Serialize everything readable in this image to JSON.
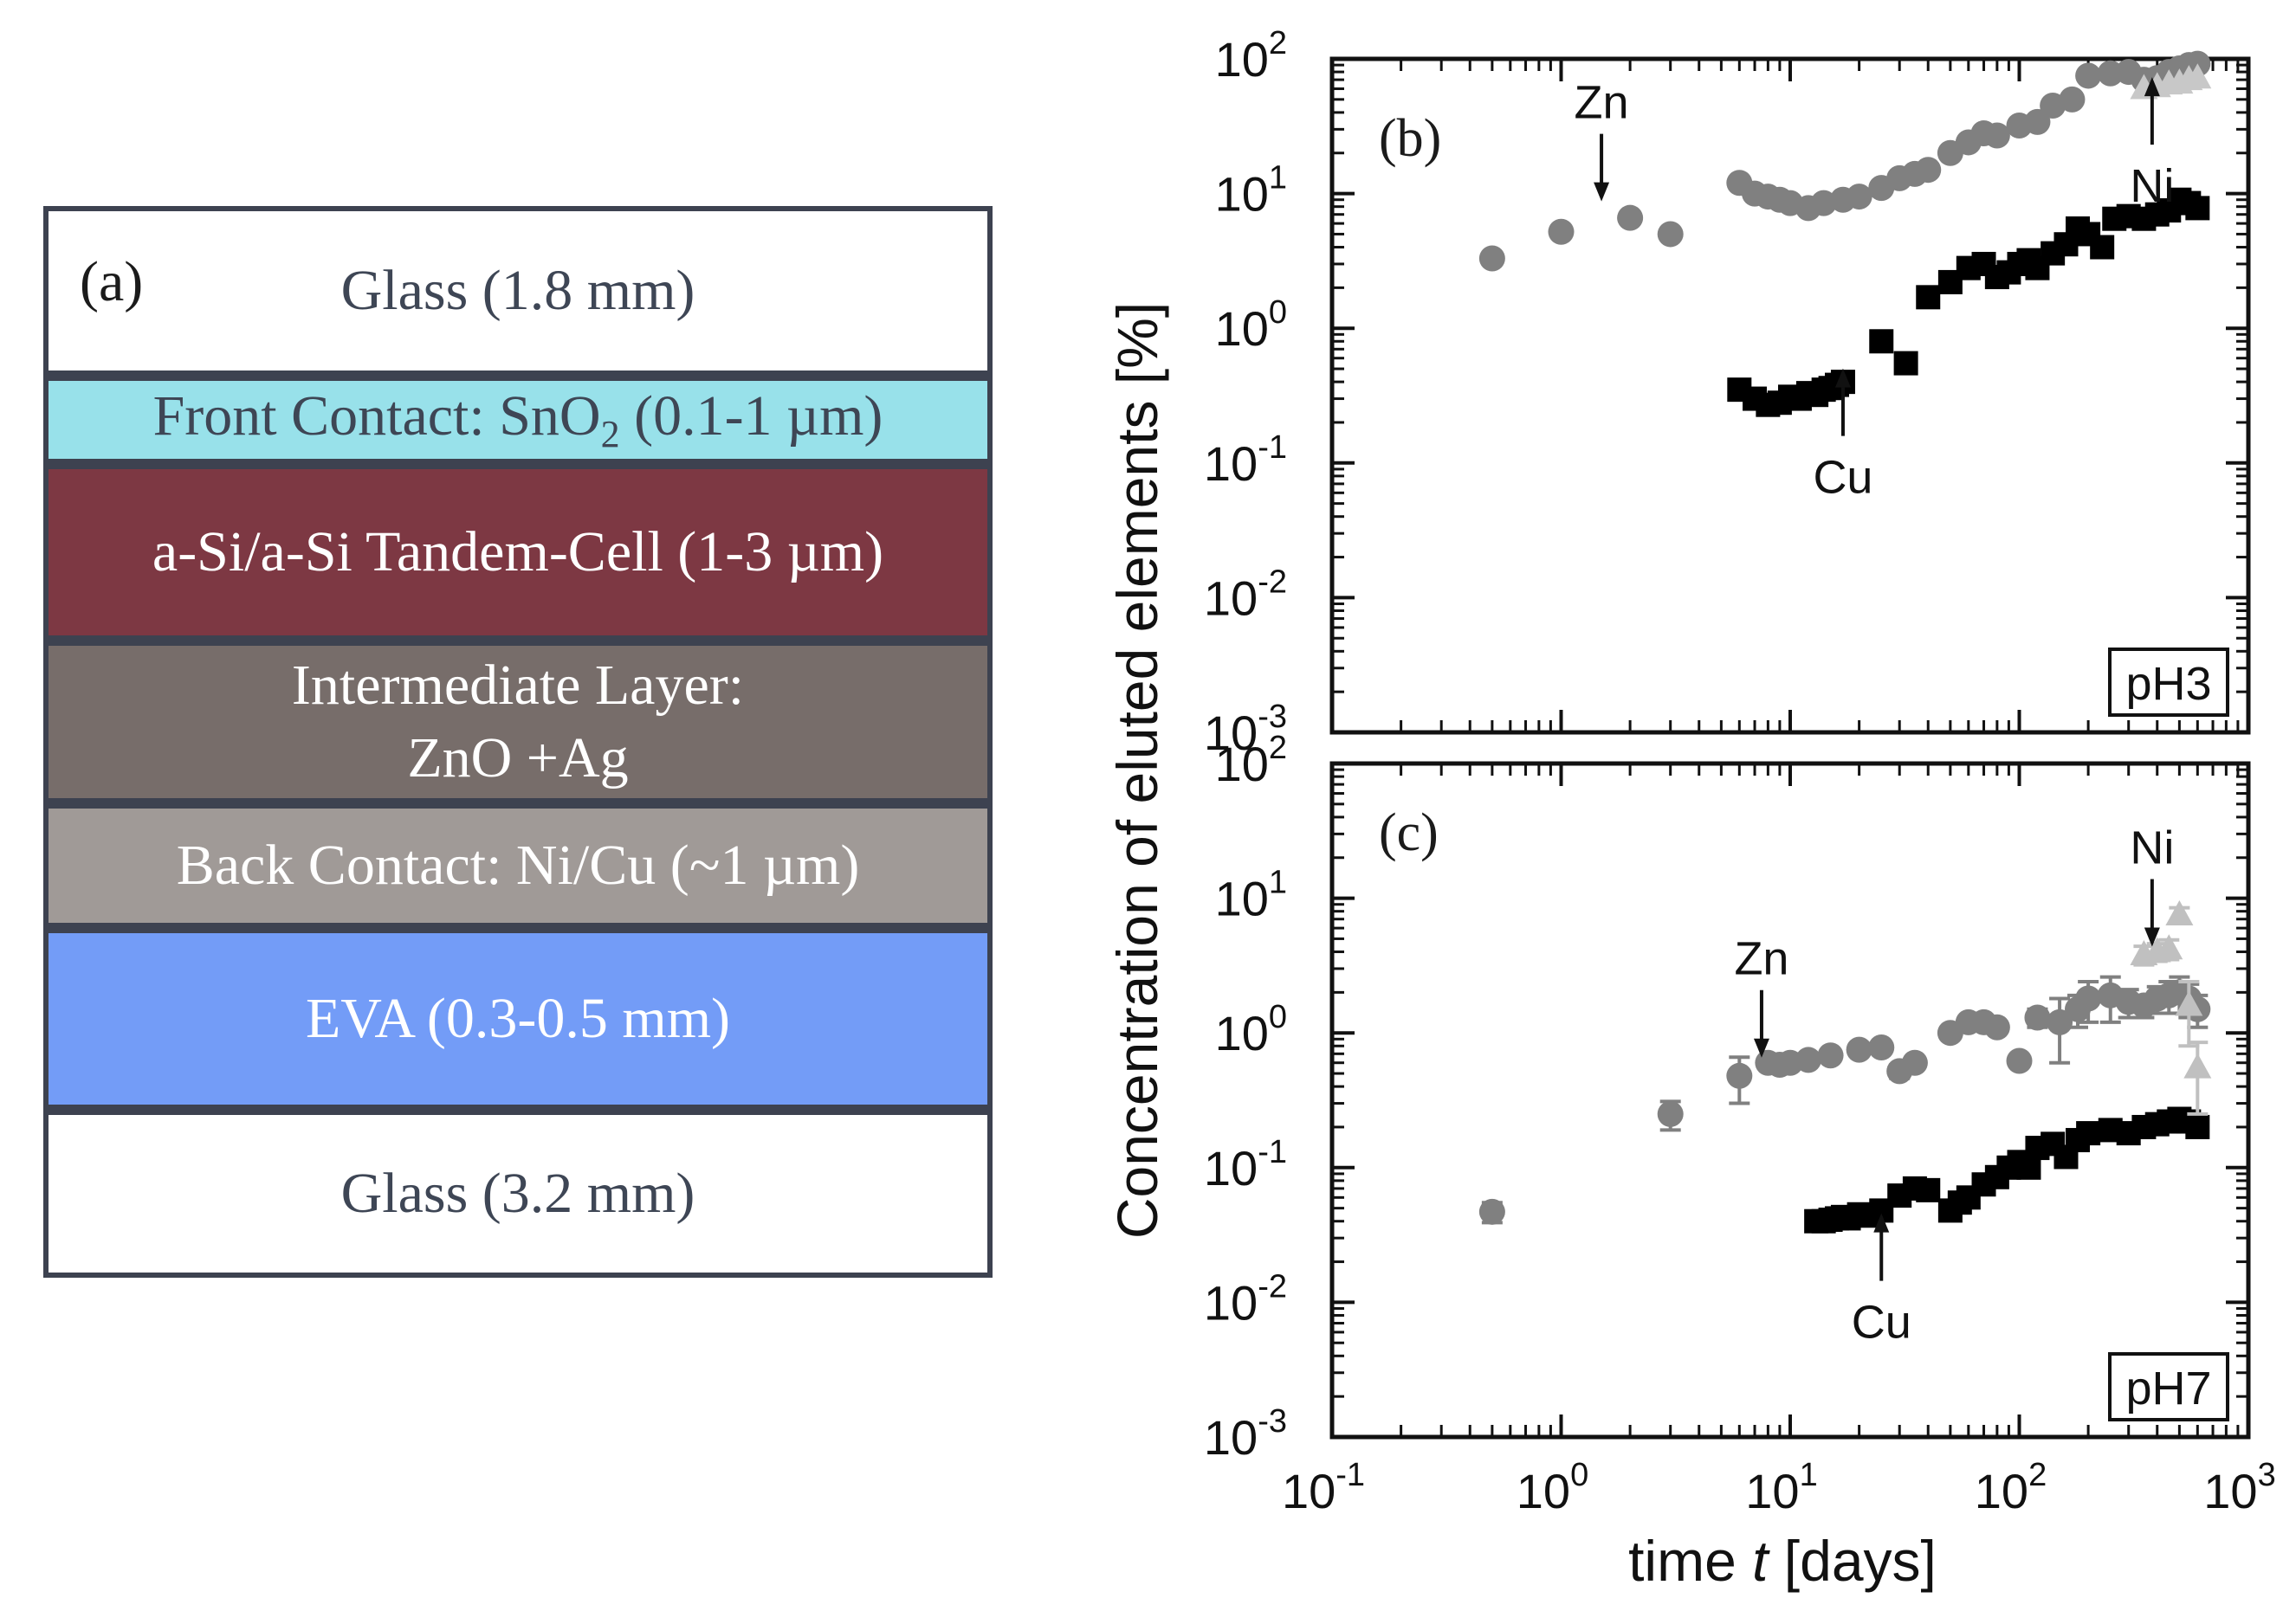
{
  "figure": {
    "panel_a": {
      "label": "(a)",
      "layers": [
        {
          "text": "Glass (1.8 mm)",
          "fill": "#ffffff",
          "text_color": "#3e4655"
        },
        {
          "text_pre": "Front Contact: SnO",
          "sub": "2",
          "text_post": " (0.1-1 µm)",
          "fill": "#98e1ea",
          "text_color": "#3e4655"
        },
        {
          "text": "a-Si/a-Si Tandem-Cell (1-3 µm)",
          "fill": "#7d3843",
          "text_color": "#ffffff"
        },
        {
          "text_line1": "Intermediate Layer:",
          "text_line2": "ZnO +Ag",
          "fill": "#776d6a",
          "text_color": "#ffffff"
        },
        {
          "text": "Back Contact: Ni/Cu (~1 µm)",
          "fill": "#a09a97",
          "text_color": "#ffffff"
        },
        {
          "text": "EVA (0.3-0.5 mm)",
          "fill": "#739cf7",
          "text_color": "#ffffff"
        },
        {
          "text": "Glass (3.2 mm)",
          "fill": "#ffffff",
          "text_color": "#3e4655"
        }
      ]
    },
    "y_axis_title": "Concentration of eluted elements [%]",
    "x_axis_title_pre": "time ",
    "x_axis_title_var": "t",
    "x_axis_title_post": " [days]"
  },
  "chart_data": [
    {
      "type": "scatter",
      "panel": "(b)",
      "condition": "pH3",
      "xscale": "log",
      "yscale": "log",
      "xlim": [
        0.1,
        1000
      ],
      "ylim": [
        0.001,
        100
      ],
      "x_ticks": [
        {
          "base": "10",
          "exp": "-1"
        },
        {
          "base": "10",
          "exp": "0"
        },
        {
          "base": "10",
          "exp": "1"
        },
        {
          "base": "10",
          "exp": "2"
        },
        {
          "base": "10",
          "exp": "3"
        }
      ],
      "y_ticks": [
        {
          "base": "10",
          "exp": "-3"
        },
        {
          "base": "10",
          "exp": "-2"
        },
        {
          "base": "10",
          "exp": "-1"
        },
        {
          "base": "10",
          "exp": "0"
        },
        {
          "base": "10",
          "exp": "1"
        },
        {
          "base": "10",
          "exp": "2"
        }
      ],
      "series": [
        {
          "name": "Zn",
          "marker": "circle",
          "color": "#808080",
          "x": [
            0.5,
            1.0,
            2.0,
            3.0,
            6.0,
            7.0,
            8.0,
            9.0,
            10.0,
            12.0,
            14.0,
            17.0,
            20.0,
            25.0,
            30.0,
            35.0,
            40.0,
            50.0,
            60.0,
            70.0,
            80.0,
            100.0,
            120.0,
            140.0,
            170.0,
            200.0,
            250.0,
            300.0,
            350.0,
            400.0,
            450.0,
            500.0,
            550.0,
            600.0
          ],
          "y": [
            3.3,
            5.2,
            6.6,
            5.0,
            12.0,
            10.0,
            9.5,
            9.0,
            8.5,
            7.8,
            8.5,
            9.0,
            9.5,
            11.0,
            13.0,
            14.0,
            15.0,
            20.0,
            24.0,
            28.0,
            27.0,
            32.0,
            34.0,
            45.0,
            50.0,
            75.0,
            78.0,
            80.0,
            70.0,
            72.0,
            80.0,
            85.0,
            90.0,
            92.0
          ]
        },
        {
          "name": "Cu",
          "marker": "square",
          "color": "#000000",
          "x": [
            6.0,
            7.0,
            8.0,
            9.0,
            10.0,
            11.0,
            12.0,
            13.0,
            14.0,
            15.0,
            16.0,
            17.0,
            25.0,
            32.0,
            40.0,
            50.0,
            60.0,
            70.0,
            80.0,
            90.0,
            100.0,
            110.0,
            120.0,
            140.0,
            160.0,
            180.0,
            200.0,
            230.0,
            260.0,
            300.0,
            350.0,
            400.0,
            450.0,
            500.0,
            550.0,
            600.0
          ],
          "y": [
            0.35,
            0.3,
            0.27,
            0.28,
            0.31,
            0.3,
            0.33,
            0.32,
            0.35,
            0.36,
            0.38,
            0.4,
            0.8,
            0.55,
            1.7,
            2.2,
            2.8,
            3.0,
            2.4,
            2.6,
            3.0,
            3.2,
            2.8,
            3.6,
            4.2,
            5.5,
            5.0,
            4.0,
            6.5,
            6.8,
            6.5,
            7.0,
            7.5,
            9.0,
            8.5,
            7.8
          ]
        },
        {
          "name": "Ni",
          "marker": "triangle",
          "color": "#c8c8c8",
          "x": [
            350.0,
            400.0,
            450.0,
            500.0,
            550.0,
            600.0
          ],
          "y": [
            60.0,
            62.0,
            65.0,
            66.0,
            70.0,
            72.0
          ]
        }
      ],
      "annotations": [
        {
          "text": "Zn",
          "x": 1.5,
          "y": 8.0,
          "direction": "down"
        },
        {
          "text": "Cu",
          "x": 17.0,
          "y": 0.55,
          "direction": "up"
        },
        {
          "text": "Ni",
          "x": 380.0,
          "y": 80.0,
          "direction": "up"
        }
      ]
    },
    {
      "type": "scatter",
      "panel": "(c)",
      "condition": "pH7",
      "xscale": "log",
      "yscale": "log",
      "xlim": [
        0.1,
        1000
      ],
      "ylim": [
        0.001,
        100
      ],
      "xlabel": "time t [days]",
      "ylabel": "Concentration of eluted elements [%]",
      "x_ticks": [
        {
          "base": "10",
          "exp": "-1"
        },
        {
          "base": "10",
          "exp": "0"
        },
        {
          "base": "10",
          "exp": "1"
        },
        {
          "base": "10",
          "exp": "2"
        },
        {
          "base": "10",
          "exp": "3"
        }
      ],
      "y_ticks": [
        {
          "base": "10",
          "exp": "-3"
        },
        {
          "base": "10",
          "exp": "-2"
        },
        {
          "base": "10",
          "exp": "-1"
        },
        {
          "base": "10",
          "exp": "0"
        },
        {
          "base": "10",
          "exp": "1"
        },
        {
          "base": "10",
          "exp": "2"
        }
      ],
      "series": [
        {
          "name": "Zn",
          "marker": "circle",
          "color": "#808080",
          "x": [
            0.5,
            3.0,
            6.0,
            8.0,
            9.0,
            10.0,
            12.0,
            15.0,
            20.0,
            25.0,
            30.0,
            35.0,
            50.0,
            60.0,
            70.0,
            80.0,
            100.0,
            120.0,
            150.0,
            180.0,
            200.0,
            250.0,
            300.0,
            350.0,
            400.0,
            450.0,
            500.0,
            550.0,
            600.0
          ],
          "y": [
            0.047,
            0.25,
            0.48,
            0.6,
            0.58,
            0.6,
            0.63,
            0.68,
            0.75,
            0.78,
            0.52,
            0.6,
            1.0,
            1.2,
            1.2,
            1.1,
            0.62,
            1.3,
            1.2,
            1.5,
            1.8,
            1.9,
            1.7,
            1.6,
            1.8,
            1.9,
            2.0,
            1.8,
            1.5
          ],
          "yerr": [
            0.008,
            0.06,
            0.18,
            0.04,
            0.04,
            0.04,
            0.04,
            0.04,
            0.05,
            0.05,
            0.06,
            0.05,
            0.08,
            0.1,
            0.1,
            0.1,
            0.05,
            0.2,
            0.6,
            0.4,
            0.6,
            0.7,
            0.4,
            0.3,
            0.4,
            0.5,
            0.6,
            0.5,
            0.4
          ]
        },
        {
          "name": "Cu",
          "marker": "square",
          "color": "#000000",
          "x": [
            13.0,
            14.0,
            15.0,
            16.0,
            17.0,
            18.0,
            20.0,
            22.0,
            25.0,
            30.0,
            35.0,
            40.0,
            50.0,
            55.0,
            60.0,
            70.0,
            80.0,
            90.0,
            100.0,
            110.0,
            120.0,
            140.0,
            160.0,
            180.0,
            200.0,
            250.0,
            300.0,
            350.0,
            400.0,
            450.0,
            500.0,
            550.0,
            600.0
          ],
          "y": [
            0.04,
            0.04,
            0.041,
            0.042,
            0.043,
            0.042,
            0.045,
            0.044,
            0.048,
            0.062,
            0.07,
            0.068,
            0.048,
            0.055,
            0.06,
            0.075,
            0.085,
            0.1,
            0.11,
            0.1,
            0.14,
            0.15,
            0.12,
            0.16,
            0.18,
            0.19,
            0.18,
            0.2,
            0.21,
            0.22,
            0.23,
            0.22,
            0.2
          ]
        },
        {
          "name": "Ni",
          "marker": "triangle",
          "color": "#c0c0c0",
          "x": [
            350.0,
            400.0,
            450.0,
            500.0,
            550.0,
            600.0
          ],
          "y": [
            3.8,
            4.0,
            4.2,
            7.5,
            1.6,
            0.55
          ],
          "yerr": [
            0.6,
            0.6,
            0.7,
            1.0,
            0.8,
            0.3
          ]
        }
      ],
      "annotations": [
        {
          "text": "Zn",
          "x": 7.5,
          "y": 0.6,
          "direction": "down"
        },
        {
          "text": "Cu",
          "x": 25.0,
          "y": 0.05,
          "direction": "up"
        },
        {
          "text": "Ni",
          "x": 380.0,
          "y": 4.0,
          "direction": "down"
        }
      ]
    }
  ]
}
